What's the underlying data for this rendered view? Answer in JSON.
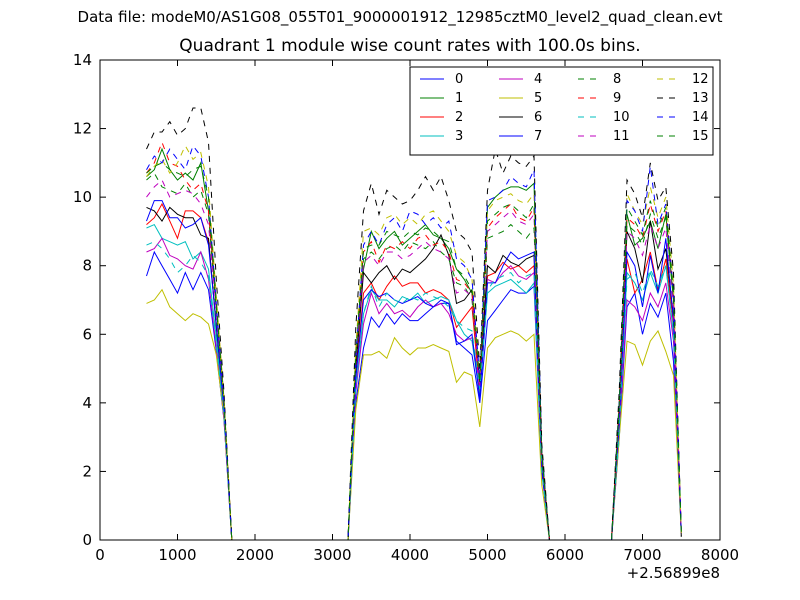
{
  "suptitle": "Data file: modeM0/AS1G08_055T01_9000001912_12985cztM0_level2_quad_clean.evt",
  "chart_data": {
    "type": "line",
    "title": "Quadrant 1 module wise count rates with 100.0s bins.",
    "xlabel": "",
    "ylabel": "",
    "x_offset_label": "+2.56899e8",
    "xlim": [
      0,
      8000
    ],
    "ylim": [
      0,
      14
    ],
    "xticks": [
      "0",
      "1000",
      "2000",
      "3000",
      "4000",
      "5000",
      "6000",
      "7000",
      "8000"
    ],
    "yticks": [
      "0",
      "2",
      "4",
      "6",
      "8",
      "10",
      "12",
      "14"
    ],
    "grid": false,
    "legend": {
      "placement": "top-right",
      "columns": 4
    },
    "x": [
      600,
      700,
      800,
      900,
      1000,
      1100,
      1200,
      1300,
      1400,
      1500,
      1600,
      1700,
      1800,
      3100,
      3200,
      3300,
      3400,
      3500,
      3600,
      3700,
      3800,
      3900,
      4000,
      4100,
      4200,
      4300,
      4400,
      4500,
      4600,
      4700,
      4800,
      4900,
      5000,
      5100,
      5200,
      5300,
      5400,
      5500,
      5600,
      5700,
      5800,
      6600,
      6700,
      6800,
      6900,
      7000,
      7100,
      7200,
      7300,
      7400,
      7500
    ],
    "series": [
      {
        "name": "0",
        "color": "#0000ff",
        "dashed": false,
        "values": [
          7.7,
          8.4,
          8.0,
          7.6,
          7.2,
          7.8,
          7.3,
          7.8,
          7.3,
          5.5,
          3.5,
          0,
          0,
          0,
          0,
          4.0,
          5.6,
          6.5,
          6.2,
          6.6,
          6.3,
          6.6,
          6.4,
          6.4,
          6.6,
          6.8,
          6.9,
          6.9,
          5.8,
          5.6,
          5.4,
          4.0,
          6.4,
          6.7,
          7.0,
          7.3,
          7.2,
          7.2,
          7.4,
          2.0,
          0,
          0,
          3.0,
          6.8,
          7.2,
          6.0,
          6.9,
          6.5,
          7.2,
          5.2,
          0.2
        ]
      },
      {
        "name": "1",
        "color": "#008000",
        "dashed": false,
        "values": [
          10.6,
          10.8,
          11.4,
          10.8,
          10.5,
          10.7,
          10.5,
          11.0,
          9.6,
          6.8,
          4.0,
          0,
          0,
          0,
          0,
          5.5,
          7.9,
          9.0,
          8.5,
          8.8,
          9.0,
          8.6,
          8.8,
          9.0,
          9.2,
          8.9,
          8.8,
          8.5,
          7.9,
          7.6,
          7.2,
          4.5,
          9.7,
          10.0,
          10.2,
          10.3,
          10.3,
          10.2,
          10.4,
          2.5,
          0,
          0,
          4.0,
          9.5,
          8.6,
          8.8,
          9.3,
          8.5,
          9.5,
          7.0,
          0.2
        ]
      },
      {
        "name": "2",
        "color": "#ff0000",
        "dashed": false,
        "values": [
          9.2,
          9.4,
          9.8,
          9.3,
          8.8,
          9.6,
          9.6,
          9.4,
          8.7,
          6.3,
          3.8,
          0,
          0,
          0,
          0,
          4.8,
          7.2,
          7.5,
          7.0,
          7.4,
          7.7,
          7.4,
          7.5,
          7.5,
          7.2,
          7.3,
          7.2,
          7.0,
          6.2,
          6.5,
          6.8,
          4.3,
          7.7,
          7.8,
          8.1,
          7.9,
          8.0,
          7.8,
          8.0,
          2.2,
          0,
          0,
          3.5,
          8.2,
          7.2,
          7.6,
          8.4,
          7.3,
          8.2,
          6.3,
          0.2
        ]
      },
      {
        "name": "3",
        "color": "#00bfbf",
        "dashed": false,
        "values": [
          9.1,
          9.2,
          8.8,
          8.7,
          8.6,
          8.7,
          8.2,
          8.4,
          7.9,
          5.9,
          3.6,
          0,
          0,
          0,
          0,
          4.4,
          6.6,
          7.3,
          7.0,
          7.0,
          6.8,
          7.1,
          7.0,
          7.2,
          6.9,
          7.0,
          7.1,
          7.0,
          6.4,
          6.0,
          5.8,
          4.2,
          7.2,
          7.4,
          7.5,
          7.6,
          7.4,
          7.2,
          7.5,
          2.1,
          0,
          0,
          3.3,
          7.8,
          7.5,
          7.0,
          7.8,
          7.2,
          8.0,
          6.0,
          0.2
        ]
      },
      {
        "name": "4",
        "color": "#bf00bf",
        "dashed": false,
        "values": [
          8.4,
          8.5,
          8.8,
          8.3,
          8.2,
          8.0,
          7.9,
          8.4,
          7.6,
          5.6,
          3.5,
          0,
          0,
          0,
          0,
          4.3,
          6.3,
          7.2,
          6.6,
          6.9,
          6.6,
          6.7,
          6.5,
          6.8,
          7.0,
          6.8,
          6.9,
          6.6,
          6.0,
          5.8,
          5.9,
          4.5,
          7.6,
          7.5,
          7.8,
          8.0,
          7.7,
          7.6,
          7.8,
          2.1,
          0,
          0,
          3.2,
          7.0,
          6.8,
          6.4,
          7.2,
          6.8,
          7.5,
          5.8,
          0.2
        ]
      },
      {
        "name": "5",
        "color": "#bfbf00",
        "dashed": false,
        "values": [
          6.9,
          7.0,
          7.3,
          6.8,
          6.6,
          6.4,
          6.6,
          6.5,
          6.3,
          5.4,
          3.6,
          0,
          0,
          0,
          0,
          3.8,
          5.4,
          5.4,
          5.5,
          5.3,
          5.9,
          5.6,
          5.4,
          5.6,
          5.6,
          5.7,
          5.6,
          5.5,
          4.6,
          4.9,
          4.8,
          3.3,
          5.6,
          5.9,
          6.0,
          6.1,
          6.0,
          5.8,
          6.0,
          1.6,
          0,
          0,
          3.0,
          5.8,
          5.7,
          5.1,
          5.8,
          6.1,
          5.5,
          4.8,
          0.2
        ]
      },
      {
        "name": "6",
        "color": "#000000",
        "dashed": false,
        "values": [
          9.7,
          9.6,
          9.3,
          9.7,
          9.5,
          9.4,
          9.4,
          8.9,
          8.8,
          6.2,
          3.9,
          0,
          0,
          0,
          0,
          5.0,
          7.8,
          7.5,
          7.8,
          8.0,
          7.6,
          7.9,
          7.8,
          8.0,
          8.2,
          8.5,
          8.9,
          8.3,
          6.9,
          7.0,
          7.3,
          4.6,
          8.0,
          7.8,
          8.3,
          8.1,
          8.0,
          8.2,
          8.3,
          2.3,
          0,
          0,
          3.6,
          9.0,
          8.5,
          7.5,
          9.3,
          7.9,
          8.5,
          6.5,
          0.1
        ]
      },
      {
        "name": "7",
        "color": "#0000ff",
        "dashed": false,
        "values": [
          9.3,
          9.9,
          9.9,
          9.4,
          9.4,
          9.1,
          9.2,
          9.4,
          8.6,
          6.3,
          3.8,
          0,
          0,
          0,
          0,
          4.7,
          7.0,
          7.3,
          7.1,
          7.2,
          7.0,
          6.9,
          7.0,
          7.1,
          6.9,
          6.8,
          7.0,
          6.9,
          5.7,
          5.8,
          6.0,
          4.1,
          7.5,
          7.5,
          8.0,
          8.4,
          8.2,
          8.3,
          8.4,
          2.1,
          0,
          0,
          3.4,
          8.4,
          8.0,
          6.8,
          8.3,
          7.2,
          8.8,
          6.4,
          0.2
        ]
      },
      {
        "name": "8",
        "color": "#008000",
        "dashed": true,
        "values": [
          10.5,
          10.7,
          10.3,
          10.2,
          10.1,
          10.4,
          10.0,
          10.2,
          9.5,
          6.6,
          4.0,
          0,
          0,
          0,
          0,
          5.2,
          8.2,
          8.4,
          8.2,
          8.5,
          8.6,
          8.4,
          8.7,
          8.6,
          8.5,
          8.7,
          8.4,
          8.2,
          7.5,
          7.4,
          7.0,
          4.6,
          8.8,
          8.9,
          9.0,
          9.2,
          9.0,
          8.8,
          9.1,
          2.4,
          0,
          0,
          3.8,
          9.2,
          9.0,
          8.6,
          9.5,
          8.8,
          9.4,
          7.0,
          0.2
        ]
      },
      {
        "name": "9",
        "color": "#ff0000",
        "dashed": true,
        "values": [
          10.7,
          11.0,
          11.6,
          11.0,
          10.9,
          10.5,
          10.2,
          10.4,
          9.6,
          7.0,
          4.1,
          0,
          0,
          0,
          0,
          5.4,
          8.4,
          8.7,
          8.1,
          8.6,
          8.5,
          8.7,
          8.5,
          8.8,
          8.9,
          8.6,
          8.7,
          8.4,
          7.6,
          7.5,
          7.2,
          4.7,
          9.1,
          9.4,
          9.6,
          9.8,
          9.4,
          9.3,
          9.7,
          2.5,
          0,
          0,
          4.0,
          9.4,
          9.2,
          8.8,
          9.8,
          9.0,
          9.6,
          7.3,
          0.2
        ]
      },
      {
        "name": "10",
        "color": "#00bfbf",
        "dashed": true,
        "values": [
          8.6,
          8.7,
          8.5,
          8.2,
          7.8,
          8.0,
          8.3,
          8.1,
          7.7,
          5.7,
          3.6,
          0,
          0,
          0,
          0,
          4.4,
          6.6,
          7.4,
          6.8,
          7.2,
          7.0,
          6.9,
          7.1,
          7.0,
          7.2,
          7.1,
          7.0,
          6.8,
          6.4,
          6.2,
          6.1,
          4.4,
          7.3,
          7.6,
          7.7,
          7.8,
          7.5,
          7.7,
          7.8,
          2.0,
          0,
          0,
          3.2,
          7.6,
          7.8,
          7.2,
          7.9,
          7.4,
          8.0,
          6.0,
          0.2
        ]
      },
      {
        "name": "11",
        "color": "#bf00bf",
        "dashed": true,
        "values": [
          10.0,
          10.3,
          10.5,
          10.0,
          10.1,
          10.2,
          10.1,
          9.8,
          9.2,
          6.7,
          3.9,
          0,
          0,
          0,
          0,
          5.2,
          8.1,
          8.3,
          8.0,
          8.4,
          8.4,
          8.2,
          8.3,
          8.5,
          8.7,
          8.5,
          8.4,
          8.2,
          7.2,
          7.3,
          7.1,
          4.5,
          9.0,
          9.2,
          9.4,
          9.6,
          9.3,
          9.2,
          9.5,
          2.4,
          0,
          0,
          3.8,
          9.0,
          8.8,
          8.3,
          9.2,
          8.5,
          9.1,
          6.8,
          0.2
        ]
      },
      {
        "name": "12",
        "color": "#bfbf00",
        "dashed": true,
        "values": [
          10.6,
          10.9,
          11.1,
          10.7,
          11.0,
          11.5,
          11.1,
          11.3,
          10.3,
          7.1,
          4.1,
          0,
          0,
          0,
          0,
          5.6,
          9.0,
          9.1,
          8.9,
          9.4,
          9.5,
          9.2,
          9.4,
          9.2,
          9.5,
          9.6,
          9.3,
          9.0,
          8.3,
          8.1,
          7.6,
          4.8,
          9.6,
          9.9,
          10.0,
          10.1,
          9.9,
          9.8,
          10.1,
          2.6,
          0,
          0,
          4.1,
          10.1,
          9.6,
          9.2,
          10.3,
          9.4,
          10.0,
          7.5,
          0.2
        ]
      },
      {
        "name": "13",
        "color": "#000000",
        "dashed": true,
        "values": [
          11.4,
          11.9,
          11.9,
          12.2,
          11.8,
          12.0,
          12.6,
          12.6,
          11.6,
          7.6,
          4.3,
          0,
          0,
          0,
          0,
          6.2,
          9.6,
          10.4,
          9.5,
          10.2,
          10.0,
          9.8,
          9.9,
          10.2,
          10.6,
          10.2,
          10.6,
          9.9,
          9.0,
          8.8,
          8.4,
          5.0,
          10.2,
          11.4,
          10.7,
          11.2,
          11.0,
          10.9,
          11.2,
          2.8,
          0,
          0,
          4.4,
          10.5,
          10.1,
          9.4,
          11.0,
          9.9,
          10.3,
          7.8,
          0.1
        ]
      },
      {
        "name": "14",
        "color": "#0000ff",
        "dashed": true,
        "values": [
          10.8,
          11.2,
          11.0,
          11.4,
          11.1,
          10.8,
          11.5,
          11.2,
          10.0,
          6.9,
          4.0,
          0,
          0,
          0,
          0,
          5.3,
          8.6,
          9.0,
          8.6,
          9.2,
          9.4,
          9.0,
          9.6,
          9.5,
          9.2,
          9.4,
          9.1,
          9.3,
          8.2,
          8.0,
          7.6,
          4.7,
          9.9,
          10.0,
          10.2,
          10.6,
          10.4,
          10.3,
          10.8,
          2.6,
          0,
          0,
          4.1,
          9.9,
          9.6,
          9.0,
          10.9,
          9.2,
          9.8,
          7.2,
          0.2
        ]
      },
      {
        "name": "15",
        "color": "#008000",
        "dashed": true,
        "values": [
          10.7,
          10.9,
          11.0,
          10.8,
          10.7,
          10.6,
          10.8,
          10.9,
          10.0,
          6.9,
          4.0,
          0,
          0,
          0,
          0,
          5.4,
          8.5,
          8.6,
          8.6,
          9.0,
          8.9,
          8.8,
          9.0,
          8.9,
          9.1,
          9.0,
          8.8,
          8.7,
          7.9,
          7.7,
          7.3,
          4.6,
          9.3,
          9.5,
          9.7,
          9.8,
          9.6,
          9.4,
          9.8,
          2.5,
          0,
          0,
          4.0,
          9.7,
          9.3,
          8.9,
          9.9,
          9.1,
          9.7,
          7.2,
          0.2
        ]
      }
    ]
  }
}
